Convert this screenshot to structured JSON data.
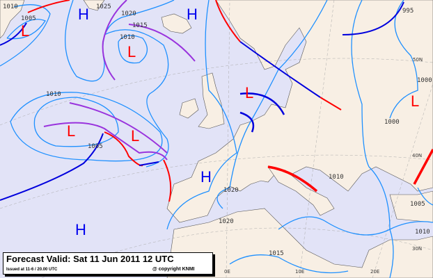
{
  "legend": {
    "title": "Forecast Valid:  Sat 11 Jun 2011 12 UTC",
    "issued": "Issued at 11-6 / 20.00 UTC",
    "copyright": "@ copyright KNMI"
  },
  "colors": {
    "sea": "#e2e3f7",
    "land": "#f8efe4",
    "isobar": "#1e90ff",
    "high": "#0000ee",
    "low": "#ff0000",
    "cold_front": "#0000dd",
    "warm_front": "#ff0000",
    "occluded_front": "#9933dd"
  },
  "pressure_systems": [
    {
      "type": "L",
      "label": "L"
    },
    {
      "type": "H",
      "label": "H"
    },
    {
      "type": "H",
      "label": "H"
    },
    {
      "type": "L",
      "label": "L"
    },
    {
      "type": "L",
      "label": "L"
    },
    {
      "type": "L",
      "label": "L"
    },
    {
      "type": "L",
      "label": "L"
    },
    {
      "type": "H",
      "label": "H"
    },
    {
      "type": "H",
      "label": "H"
    },
    {
      "type": "L",
      "label": "L"
    }
  ],
  "isobar_labels": [
    "1005",
    "1010",
    "1025",
    "1020",
    "1015",
    "1010",
    "1010",
    "1005",
    "1020",
    "1020",
    "1015",
    "1010",
    "1005",
    "1010",
    "995",
    "1000",
    "1000"
  ],
  "grid_labels": [
    "50N",
    "40N",
    "30N",
    "0E",
    "10E",
    "20E"
  ]
}
